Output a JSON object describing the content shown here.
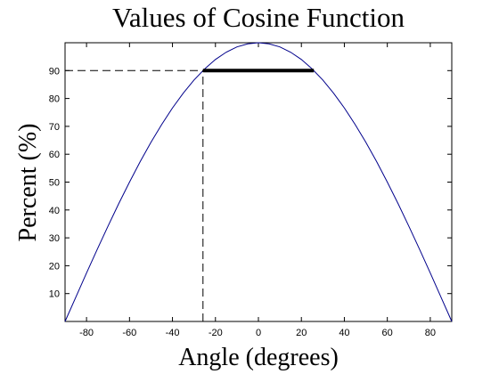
{
  "chart_data": {
    "type": "line",
    "title": "Values of Cosine Function",
    "xlabel": "Angle (degrees)",
    "ylabel": "Percent (%)",
    "xlim": [
      -90,
      90
    ],
    "ylim": [
      0,
      100
    ],
    "xticks": [
      -80,
      -60,
      -40,
      -20,
      0,
      20,
      40,
      60,
      80
    ],
    "yticks": [
      10,
      20,
      30,
      40,
      50,
      60,
      70,
      80,
      90
    ],
    "grid": false,
    "series": [
      {
        "color": "#00008b",
        "linestyle": "solid",
        "linewidth": 1,
        "x": [
          -90,
          -85,
          -80,
          -75,
          -70,
          -65,
          -60,
          -55,
          -50,
          -45,
          -40,
          -35,
          -30,
          -25,
          -20,
          -15,
          -10,
          -5,
          0,
          5,
          10,
          15,
          20,
          25,
          30,
          35,
          40,
          45,
          50,
          55,
          60,
          65,
          70,
          75,
          80,
          85,
          90
        ],
        "values": [
          0,
          8.7,
          17.4,
          25.9,
          34.2,
          42.3,
          50,
          57.4,
          64.3,
          70.7,
          76.6,
          81.9,
          86.6,
          90.6,
          94.0,
          96.6,
          98.5,
          99.6,
          100,
          99.6,
          98.5,
          96.6,
          94.0,
          90.6,
          86.6,
          81.9,
          76.6,
          70.7,
          64.3,
          57.4,
          50,
          42.3,
          34.2,
          25.9,
          17.4,
          8.7,
          0
        ]
      },
      {
        "color": "#000000",
        "linestyle": "dashed",
        "linewidth": 1,
        "x": [
          -90,
          -25.8
        ],
        "values": [
          90,
          90
        ]
      },
      {
        "color": "#000000",
        "linestyle": "dashed",
        "linewidth": 1,
        "x": [
          -25.8,
          -25.8
        ],
        "values": [
          0,
          90
        ]
      },
      {
        "color": "#000000",
        "linestyle": "solid",
        "linewidth": 4,
        "x": [
          -25.8,
          25.8
        ],
        "values": [
          90,
          90
        ]
      }
    ]
  }
}
